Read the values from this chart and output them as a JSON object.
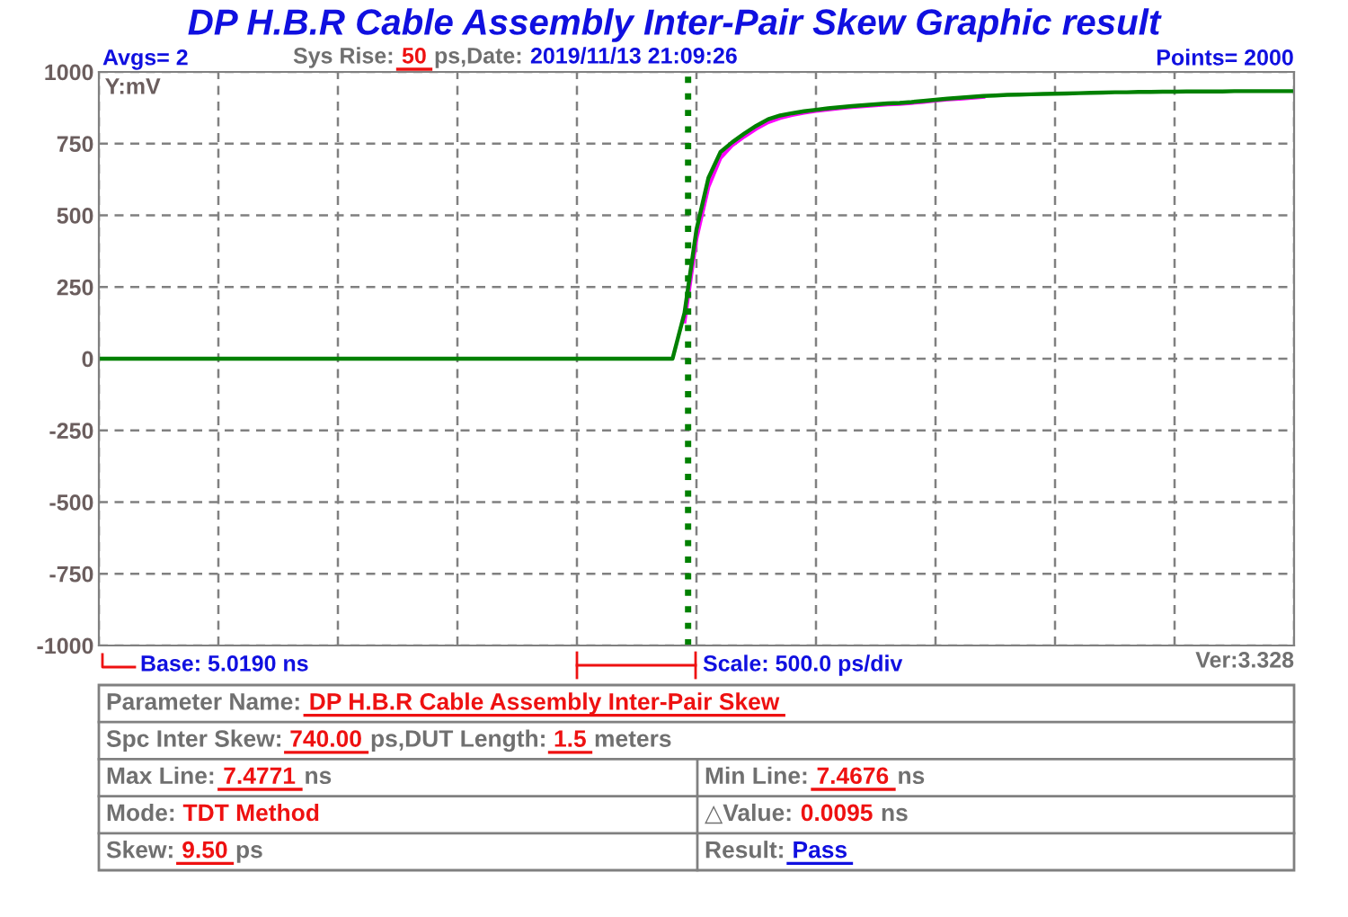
{
  "chart_data": {
    "type": "line",
    "title": "DP H.B.R Cable Assembly Inter-Pair Skew Graphic result",
    "ylabel": "Y:mV",
    "categories": [
      null,
      null,
      null,
      null,
      null,
      null,
      null,
      null,
      null,
      null,
      null,
      null,
      null,
      null,
      null,
      null,
      null,
      null,
      null,
      null,
      null,
      null,
      null,
      null,
      null,
      null,
      null,
      null,
      null,
      null,
      null,
      null,
      null,
      null,
      null,
      null,
      null,
      null,
      null,
      null,
      null,
      null,
      null,
      null,
      null,
      null,
      null,
      null,
      null,
      null,
      null,
      null,
      null,
      null,
      null,
      null,
      null,
      null,
      null,
      null,
      null,
      null,
      null,
      null,
      null,
      null,
      null,
      null,
      null,
      null,
      null,
      null,
      null,
      null,
      null,
      null,
      null,
      null,
      null,
      null,
      null,
      null,
      null,
      null,
      null,
      null,
      null,
      null,
      null,
      null,
      null,
      null,
      null,
      null,
      null,
      null,
      null,
      null,
      null,
      null,
      null
    ],
    "series": [
      {
        "color": "#ff00ff",
        "values": [
          null,
          null,
          null,
          null,
          null,
          null,
          null,
          null,
          null,
          null,
          null,
          null,
          null,
          null,
          null,
          null,
          null,
          null,
          null,
          null,
          null,
          null,
          null,
          null,
          null,
          null,
          null,
          null,
          null,
          null,
          null,
          null,
          null,
          null,
          null,
          null,
          null,
          null,
          null,
          null,
          null,
          null,
          null,
          null,
          null,
          null,
          null,
          null,
          null,
          130,
          420,
          600,
          700,
          745,
          775,
          802,
          825,
          840,
          850,
          858,
          864,
          869,
          874,
          878,
          881,
          884,
          887,
          889,
          892,
          896,
          900,
          904,
          907,
          910,
          913,
          null,
          null,
          null,
          null,
          null,
          null,
          null,
          null,
          null,
          null,
          null,
          null,
          null,
          null,
          null,
          null,
          null,
          null,
          null,
          null,
          null,
          null,
          null,
          null,
          null,
          null
        ]
      },
      {
        "color": "#008000",
        "values": [
          0,
          0,
          0,
          0,
          0,
          0,
          0,
          0,
          0,
          0,
          0,
          0,
          0,
          0,
          0,
          0,
          0,
          0,
          0,
          0,
          0,
          0,
          0,
          0,
          0,
          0,
          0,
          0,
          0,
          0,
          0,
          0,
          0,
          0,
          0,
          0,
          0,
          0,
          0,
          0,
          0,
          0,
          0,
          0,
          0,
          0,
          0,
          0,
          0,
          160,
          450,
          630,
          720,
          755,
          785,
          812,
          835,
          848,
          856,
          863,
          868,
          873,
          877,
          881,
          884,
          887,
          890,
          892,
          895,
          899,
          903,
          907,
          910,
          913,
          916,
          918,
          920,
          921,
          922,
          923,
          924,
          925,
          926,
          927,
          928,
          929,
          929,
          930,
          930,
          931,
          931,
          932,
          932,
          932,
          932,
          933,
          933,
          933,
          933,
          933,
          933
        ]
      }
    ],
    "ylim": [
      -1000,
      1000
    ],
    "yticks": [
      1000,
      750,
      500,
      250,
      0,
      {
        "value": -250,
        "label": "-250"
      },
      {
        "value": -500,
        "label": "-500"
      },
      {
        "value": -750,
        "label": "-750"
      },
      {
        "value": -1000,
        "label": "-1000"
      }
    ],
    "grid": true,
    "legend": false,
    "line_style": "solid",
    "marker": "none",
    "annotations": [
      "Avgs= 2",
      "Sys Rise:",
      "50",
      "ps,Date:",
      "2019/11/13 21:09:26",
      "Points= 2000",
      "Base: 5.0190 ns",
      "Scale: 500.0 ps/div",
      "Ver:3.328",
      "Parameter Name:",
      "DP H.B.R Cable Assembly Inter-Pair Skew",
      "Spc Inter Skew:",
      "740.00",
      "ps,DUT Length:",
      "1.5",
      "meters",
      "Max Line:",
      "7.4771",
      "ns",
      "Min Line:",
      "7.4676",
      "ns",
      "Mode:",
      "TDT Method",
      "△Value:",
      "0.0095",
      "ns",
      "Skew:",
      "9.50",
      "ps",
      "Result:",
      "Pass"
    ]
  }
}
